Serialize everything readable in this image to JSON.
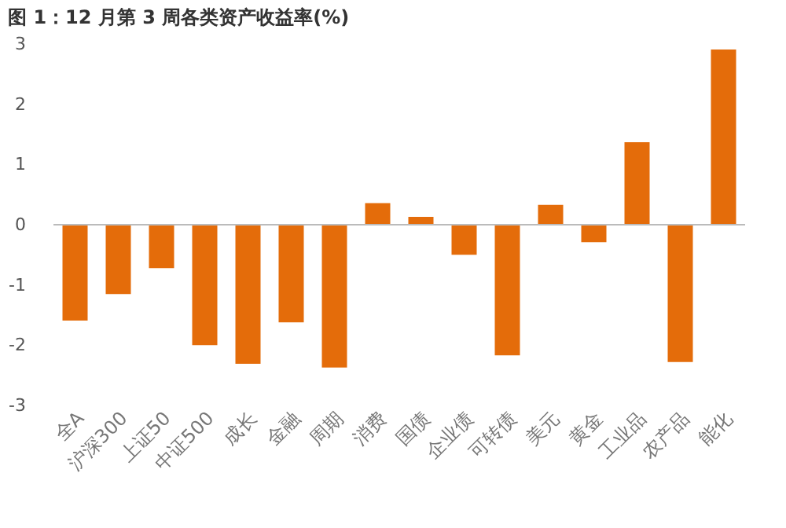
{
  "chart_data": {
    "type": "bar",
    "title": "图 1：12 月第 3 周各类资产收益率(%)",
    "categories": [
      "全A",
      "沪深300",
      "上证50",
      "中证500",
      "成长",
      "金融",
      "周期",
      "消费",
      "国债",
      "企业债",
      "可转债",
      "美元",
      "黄金",
      "工业品",
      "农产品",
      "能化"
    ],
    "values": [
      -1.59,
      -1.15,
      -0.72,
      -2.0,
      -2.31,
      -1.62,
      -2.37,
      0.36,
      0.13,
      -0.5,
      -2.17,
      0.33,
      -0.29,
      1.37,
      -2.28,
      2.91
    ],
    "color": "#e46c0a",
    "ylim": [
      -3,
      3
    ],
    "yticks": [
      -3,
      -2,
      -1,
      0,
      1,
      2,
      3
    ],
    "grid": false,
    "legend": false,
    "ref_lines": [
      {
        "axis": "y",
        "value": 0,
        "color": "#bbbbbb"
      }
    ]
  }
}
